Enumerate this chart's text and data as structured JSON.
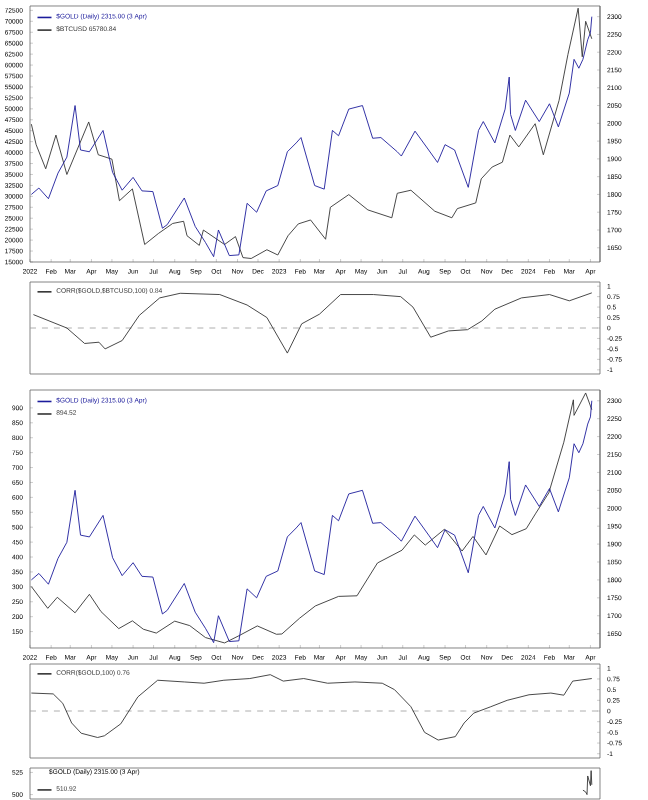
{
  "chart_data": [
    {
      "type": "line",
      "legend": "top left",
      "xlim": [
        "2022-01-01",
        "2024-04-15"
      ],
      "xticks": [
        {
          "value": "2022-01-01",
          "label": "2022"
        },
        {
          "value": "2022-02-01",
          "label": "Feb"
        },
        {
          "value": "2022-03-01",
          "label": "Mar"
        },
        {
          "value": "2022-04-01",
          "label": "Apr"
        },
        {
          "value": "2022-05-01",
          "label": "May"
        },
        {
          "value": "2022-06-01",
          "label": "Jun"
        },
        {
          "value": "2022-07-01",
          "label": "Jul"
        },
        {
          "value": "2022-08-01",
          "label": "Aug"
        },
        {
          "value": "2022-09-01",
          "label": "Sep"
        },
        {
          "value": "2022-10-01",
          "label": "Oct"
        },
        {
          "value": "2022-11-01",
          "label": "Nov"
        },
        {
          "value": "2022-12-01",
          "label": "Dec"
        },
        {
          "value": "2023-01-01",
          "label": "2023"
        },
        {
          "value": "2023-02-01",
          "label": "Feb"
        },
        {
          "value": "2023-03-01",
          "label": "Mar"
        },
        {
          "value": "2023-04-01",
          "label": "Apr"
        },
        {
          "value": "2023-05-01",
          "label": "May"
        },
        {
          "value": "2023-06-01",
          "label": "Jun"
        },
        {
          "value": "2023-07-01",
          "label": "Jul"
        },
        {
          "value": "2023-08-01",
          "label": "Aug"
        },
        {
          "value": "2023-09-01",
          "label": "Sep"
        },
        {
          "value": "2023-10-01",
          "label": "Oct"
        },
        {
          "value": "2023-11-01",
          "label": "Nov"
        },
        {
          "value": "2023-12-01",
          "label": "Dec"
        },
        {
          "value": "2024-01-01",
          "label": "2024"
        },
        {
          "value": "2024-02-01",
          "label": "Feb"
        },
        {
          "value": "2024-03-01",
          "label": "Mar"
        },
        {
          "value": "2024-04-01",
          "label": "Apr"
        }
      ],
      "ylim": [
        15000,
        73500
      ],
      "yticks": [
        15000,
        17500,
        20000,
        22500,
        25000,
        27500,
        30000,
        32500,
        35000,
        37500,
        40000,
        42500,
        45000,
        47500,
        50000,
        52500,
        55000,
        57500,
        60000,
        62500,
        65000,
        67500,
        70000,
        72500
      ],
      "y2lim": [
        1610,
        2330
      ],
      "y2ticks": [
        1650,
        1700,
        1750,
        1800,
        1850,
        1900,
        1950,
        2000,
        2050,
        2100,
        2150,
        2200,
        2250,
        2300
      ],
      "series": [
        {
          "name": "$GOLD (Daily) 2315.00 (3 Apr)",
          "color": "#1c1c9c",
          "axis": "y2",
          "x": [
            "2022-01-03",
            "2022-01-14",
            "2022-01-28",
            "2022-02-11",
            "2022-02-24",
            "2022-03-08",
            "2022-03-16",
            "2022-03-29",
            "2022-04-18",
            "2022-05-02",
            "2022-05-16",
            "2022-06-01",
            "2022-06-14",
            "2022-06-30",
            "2022-07-14",
            "2022-07-21",
            "2022-08-15",
            "2022-08-31",
            "2022-09-15",
            "2022-09-27",
            "2022-10-04",
            "2022-10-20",
            "2022-11-03",
            "2022-11-15",
            "2022-11-29",
            "2022-12-13",
            "2022-12-30",
            "2023-01-13",
            "2023-01-26",
            "2023-02-02",
            "2023-02-22",
            "2023-03-08",
            "2023-03-20",
            "2023-03-29",
            "2023-04-13",
            "2023-05-03",
            "2023-05-18",
            "2023-05-30",
            "2023-06-23",
            "2023-06-29",
            "2023-07-19",
            "2023-08-08",
            "2023-08-21",
            "2023-09-01",
            "2023-09-15",
            "2023-10-05",
            "2023-10-20",
            "2023-10-27",
            "2023-11-13",
            "2023-11-28",
            "2023-12-04",
            "2023-12-06",
            "2023-12-13",
            "2023-12-28",
            "2024-01-17",
            "2024-02-01",
            "2024-02-14",
            "2024-03-01",
            "2024-03-08",
            "2024-03-15",
            "2024-03-21",
            "2024-03-28",
            "2024-04-01",
            "2024-04-03"
          ],
          "values": [
            1800,
            1818,
            1788,
            1860,
            1905,
            2050,
            1925,
            1920,
            1980,
            1862,
            1812,
            1848,
            1810,
            1808,
            1705,
            1715,
            1790,
            1710,
            1665,
            1625,
            1700,
            1628,
            1630,
            1775,
            1750,
            1810,
            1825,
            1920,
            1945,
            1960,
            1825,
            1815,
            1980,
            1965,
            2040,
            2050,
            1958,
            1960,
            1920,
            1908,
            1978,
            1925,
            1890,
            1940,
            1925,
            1820,
            1980,
            2005,
            1945,
            2040,
            2130,
            2025,
            1980,
            2065,
            2005,
            2055,
            1990,
            2085,
            2180,
            2155,
            2180,
            2235,
            2255,
            2300
          ]
        },
        {
          "name": "$BTCUSD 65780.84",
          "color": "#333333",
          "x": [
            "2022-01-03",
            "2022-01-10",
            "2022-01-24",
            "2022-02-08",
            "2022-02-24",
            "2022-03-28",
            "2022-04-11",
            "2022-05-01",
            "2022-05-12",
            "2022-05-31",
            "2022-06-18",
            "2022-07-08",
            "2022-07-29",
            "2022-08-14",
            "2022-08-19",
            "2022-09-06",
            "2022-09-12",
            "2022-10-13",
            "2022-10-29",
            "2022-11-09",
            "2022-11-21",
            "2022-12-14",
            "2022-12-30",
            "2023-01-14",
            "2023-01-29",
            "2023-02-16",
            "2023-03-10",
            "2023-03-17",
            "2023-04-13",
            "2023-05-11",
            "2023-06-15",
            "2023-06-23",
            "2023-07-13",
            "2023-08-17",
            "2023-09-11",
            "2023-09-19",
            "2023-10-16",
            "2023-10-24",
            "2023-11-09",
            "2023-11-24",
            "2023-12-05",
            "2023-12-18",
            "2024-01-11",
            "2024-01-23",
            "2024-02-15",
            "2024-02-28",
            "2024-03-14",
            "2024-03-20",
            "2024-03-25",
            "2024-04-03"
          ],
          "values": [
            46500,
            41800,
            36300,
            44000,
            35000,
            47000,
            39500,
            38500,
            29000,
            31700,
            19000,
            21500,
            23800,
            24300,
            21000,
            18800,
            22300,
            19000,
            20800,
            16000,
            15800,
            17800,
            16600,
            21000,
            23700,
            24600,
            20200,
            27500,
            30400,
            26900,
            25100,
            30700,
            31400,
            26600,
            25100,
            27200,
            28500,
            34000,
            36700,
            37800,
            44000,
            41300,
            46600,
            39500,
            51900,
            62400,
            73000,
            61900,
            70000,
            66000
          ]
        }
      ]
    },
    {
      "type": "line",
      "legend": "top left",
      "tick_labels": "y",
      "xlim": [
        "2022-01-01",
        "2024-04-15"
      ],
      "y2lim": [
        -1.1,
        1.1
      ],
      "y2ticks": [
        -1,
        -0.75,
        -0.5,
        -0.25,
        0,
        0.25,
        0.5,
        0.75,
        1
      ],
      "ref_lines": [
        {
          "axis": "y2",
          "value": 0,
          "color": "#999999",
          "line_style": "dashed"
        }
      ],
      "series": [
        {
          "name": "CORR($GOLD,$BTCUSD,100) 0.84",
          "color": "#333333",
          "axis": "y2",
          "x": [
            "2022-01-06",
            "2022-02-24",
            "2022-03-22",
            "2022-04-12",
            "2022-04-21",
            "2022-05-16",
            "2022-06-10",
            "2022-07-10",
            "2022-08-09",
            "2022-10-06",
            "2022-11-15",
            "2022-12-14",
            "2023-01-13",
            "2023-02-03",
            "2023-03-01",
            "2023-04-01",
            "2023-05-19",
            "2023-06-28",
            "2023-07-16",
            "2023-08-11",
            "2023-09-06",
            "2023-10-04",
            "2023-10-25",
            "2023-11-13",
            "2023-12-22",
            "2024-02-01",
            "2024-03-01",
            "2024-04-03"
          ],
          "values": [
            0.32,
            0,
            -0.37,
            -0.34,
            -0.5,
            -0.3,
            0.3,
            0.72,
            0.83,
            0.8,
            0.55,
            0.25,
            -0.6,
            0.1,
            0.33,
            0.8,
            0.8,
            0.75,
            0.5,
            -0.22,
            -0.07,
            -0.04,
            0.17,
            0.45,
            0.72,
            0.8,
            0.65,
            0.84
          ]
        }
      ]
    },
    {
      "type": "line",
      "legend": "top left",
      "xlim": [
        "2022-01-01",
        "2024-04-15"
      ],
      "xticks": [
        {
          "value": "2022-01-01",
          "label": "2022"
        },
        {
          "value": "2022-02-01",
          "label": "Feb"
        },
        {
          "value": "2022-03-01",
          "label": "Mar"
        },
        {
          "value": "2022-04-01",
          "label": "Apr"
        },
        {
          "value": "2022-05-01",
          "label": "May"
        },
        {
          "value": "2022-06-01",
          "label": "Jun"
        },
        {
          "value": "2022-07-01",
          "label": "Jul"
        },
        {
          "value": "2022-08-01",
          "label": "Aug"
        },
        {
          "value": "2022-09-01",
          "label": "Sep"
        },
        {
          "value": "2022-10-01",
          "label": "Oct"
        },
        {
          "value": "2022-11-01",
          "label": "Nov"
        },
        {
          "value": "2022-12-01",
          "label": "Dec"
        },
        {
          "value": "2023-01-01",
          "label": "2023"
        },
        {
          "value": "2023-02-01",
          "label": "Feb"
        },
        {
          "value": "2023-03-01",
          "label": "Mar"
        },
        {
          "value": "2023-04-01",
          "label": "Apr"
        },
        {
          "value": "2023-05-01",
          "label": "May"
        },
        {
          "value": "2023-06-01",
          "label": "Jun"
        },
        {
          "value": "2023-07-01",
          "label": "Jul"
        },
        {
          "value": "2023-08-01",
          "label": "Aug"
        },
        {
          "value": "2023-09-01",
          "label": "Sep"
        },
        {
          "value": "2023-10-01",
          "label": "Oct"
        },
        {
          "value": "2023-11-01",
          "label": "Nov"
        },
        {
          "value": "2023-12-01",
          "label": "Dec"
        },
        {
          "value": "2024-01-01",
          "label": "2024"
        },
        {
          "value": "2024-02-01",
          "label": "Feb"
        },
        {
          "value": "2024-03-01",
          "label": "Mar"
        },
        {
          "value": "2024-04-01",
          "label": "Apr"
        }
      ],
      "ylim": [
        95,
        960
      ],
      "yticks": [
        150,
        200,
        250,
        300,
        350,
        400,
        450,
        500,
        550,
        600,
        650,
        700,
        750,
        800,
        850,
        900
      ],
      "y2lim": [
        1610,
        2330
      ],
      "y2ticks": [
        1650,
        1700,
        1750,
        1800,
        1850,
        1900,
        1950,
        2000,
        2050,
        2100,
        2150,
        2200,
        2250,
        2300
      ],
      "series": [
        {
          "name": "$GOLD (Daily) 2315.00 (3 Apr)",
          "color": "#1c1c9c",
          "axis": "y2",
          "x": [
            "2022-01-03",
            "2022-01-14",
            "2022-01-28",
            "2022-02-11",
            "2022-02-24",
            "2022-03-08",
            "2022-03-16",
            "2022-03-29",
            "2022-04-18",
            "2022-05-02",
            "2022-05-16",
            "2022-06-01",
            "2022-06-14",
            "2022-06-30",
            "2022-07-14",
            "2022-07-21",
            "2022-08-15",
            "2022-08-31",
            "2022-09-15",
            "2022-09-27",
            "2022-10-04",
            "2022-10-20",
            "2022-11-03",
            "2022-11-15",
            "2022-11-29",
            "2022-12-13",
            "2022-12-30",
            "2023-01-13",
            "2023-01-26",
            "2023-02-02",
            "2023-02-22",
            "2023-03-08",
            "2023-03-20",
            "2023-03-29",
            "2023-04-13",
            "2023-05-03",
            "2023-05-18",
            "2023-05-30",
            "2023-06-23",
            "2023-06-29",
            "2023-07-19",
            "2023-08-08",
            "2023-08-21",
            "2023-09-01",
            "2023-09-15",
            "2023-10-05",
            "2023-10-20",
            "2023-10-27",
            "2023-11-13",
            "2023-11-28",
            "2023-12-04",
            "2023-12-06",
            "2023-12-13",
            "2023-12-28",
            "2024-01-17",
            "2024-02-01",
            "2024-02-14",
            "2024-03-01",
            "2024-03-08",
            "2024-03-15",
            "2024-03-21",
            "2024-03-28",
            "2024-04-01",
            "2024-04-03"
          ],
          "values": [
            1800,
            1818,
            1788,
            1860,
            1905,
            2050,
            1925,
            1920,
            1980,
            1862,
            1812,
            1848,
            1810,
            1808,
            1705,
            1715,
            1790,
            1710,
            1665,
            1625,
            1700,
            1628,
            1630,
            1775,
            1750,
            1810,
            1825,
            1920,
            1945,
            1960,
            1825,
            1815,
            1980,
            1965,
            2040,
            2050,
            1958,
            1960,
            1920,
            1908,
            1978,
            1925,
            1890,
            1940,
            1925,
            1820,
            1980,
            2005,
            1945,
            2040,
            2130,
            2025,
            1980,
            2065,
            2005,
            2055,
            1990,
            2085,
            2180,
            2155,
            2180,
            2235,
            2255,
            2300
          ]
        },
        {
          "name": "894.52",
          "color": "#333333",
          "x": [
            "2022-01-03",
            "2022-01-27",
            "2022-02-10",
            "2022-03-08",
            "2022-03-29",
            "2022-04-15",
            "2022-05-11",
            "2022-05-31",
            "2022-06-16",
            "2022-07-05",
            "2022-08-01",
            "2022-08-23",
            "2022-09-15",
            "2022-10-13",
            "2022-11-03",
            "2022-11-30",
            "2022-12-28",
            "2023-01-05",
            "2023-01-31",
            "2023-02-23",
            "2023-03-29",
            "2023-04-25",
            "2023-05-25",
            "2023-06-30",
            "2023-07-18",
            "2023-08-03",
            "2023-08-31",
            "2023-09-26",
            "2023-10-12",
            "2023-10-31",
            "2023-11-20",
            "2023-12-08",
            "2023-12-29",
            "2024-01-12",
            "2024-01-31",
            "2024-02-22",
            "2024-03-07",
            "2024-03-08",
            "2024-03-25",
            "2024-04-03"
          ],
          "values": [
            301,
            228,
            265,
            213,
            275,
            217,
            160,
            186,
            158,
            145,
            185,
            170,
            130,
            112,
            136,
            169,
            141,
            142,
            195,
            236,
            268,
            270,
            380,
            423,
            474,
            440,
            493,
            420,
            469,
            407,
            504,
            475,
            495,
            547,
            615,
            785,
            927,
            875,
            950,
            894
          ]
        }
      ]
    },
    {
      "type": "line",
      "legend": "top left",
      "tick_labels": "y",
      "xlim": [
        "2022-01-01",
        "2024-04-15"
      ],
      "y2lim": [
        -1.1,
        1.1
      ],
      "y2ticks": [
        -1,
        -0.75,
        -0.5,
        -0.25,
        0,
        0.25,
        0.5,
        0.75,
        1
      ],
      "ref_lines": [
        {
          "axis": "y2",
          "value": 0,
          "color": "#999999",
          "line_style": "dashed"
        }
      ],
      "series": [
        {
          "name": "CORR($GOLD,100) 0.76",
          "color": "#333333",
          "axis": "y2",
          "x": [
            "2022-01-03",
            "2022-02-04",
            "2022-02-18",
            "2022-03-03",
            "2022-03-17",
            "2022-04-10",
            "2022-04-20",
            "2022-05-14",
            "2022-06-08",
            "2022-07-07",
            "2022-08-15",
            "2022-09-13",
            "2022-10-12",
            "2022-11-19",
            "2022-12-19",
            "2023-01-07",
            "2023-02-06",
            "2023-03-13",
            "2023-04-22",
            "2023-06-01",
            "2023-06-19",
            "2023-07-13",
            "2023-08-02",
            "2023-08-22",
            "2023-09-16",
            "2023-09-29",
            "2023-10-13",
            "2023-11-07",
            "2023-12-01",
            "2024-01-02",
            "2024-02-03",
            "2024-02-22",
            "2024-03-06",
            "2024-04-03"
          ],
          "values": [
            0.42,
            0.4,
            0.18,
            -0.28,
            -0.52,
            -0.62,
            -0.58,
            -0.3,
            0.33,
            0.72,
            0.68,
            0.65,
            0.72,
            0.76,
            0.85,
            0.7,
            0.76,
            0.65,
            0.68,
            0.65,
            0.5,
            0.1,
            -0.5,
            -0.68,
            -0.6,
            -0.28,
            -0.05,
            0.1,
            0.25,
            0.38,
            0.42,
            0.37,
            0.7,
            0.76
          ]
        }
      ]
    },
    {
      "type": "line",
      "legend": "bottom left",
      "tick_labels": "y",
      "xlim": [
        "2022-01-01",
        "2024-04-15"
      ],
      "ylim": [
        495,
        530
      ],
      "yticks": [
        500,
        525
      ],
      "annotations": [
        "$GOLD (Daily) 2315.00 (3 Apr)",
        "2300"
      ],
      "series": [
        {
          "name": "510.92",
          "color": "#333333",
          "x": [
            "2024-03-21",
            "2024-03-25",
            "2024-03-27",
            "2024-03-28",
            "2024-04-01",
            "2024-04-02",
            "2024-04-03"
          ],
          "values": [
            505,
            503,
            500,
            521,
            510,
            527,
            511
          ]
        }
      ]
    }
  ]
}
